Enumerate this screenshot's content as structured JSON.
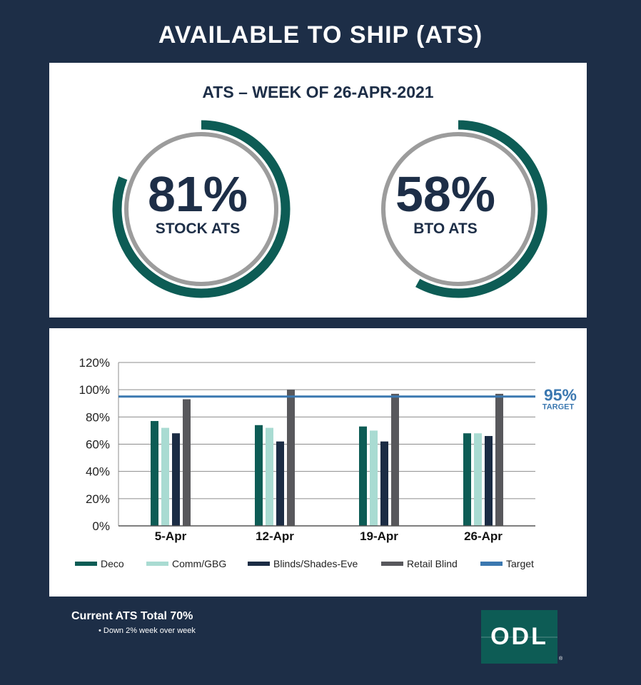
{
  "header": {
    "title": "AVAILABLE TO SHIP (ATS)"
  },
  "gauges": {
    "title": "ATS – WEEK OF 26-APR-2021",
    "stock": {
      "value": "81%",
      "label": "STOCK ATS",
      "fraction": 0.81
    },
    "bto": {
      "value": "58%",
      "label": "BTO ATS",
      "fraction": 0.58
    }
  },
  "colors": {
    "navy": "#1d2e47",
    "gauge_arc": "#0d5c55",
    "gauge_ring": "#9c9c9c"
  },
  "chart_data": {
    "type": "bar",
    "categories": [
      "5-Apr",
      "12-Apr",
      "19-Apr",
      "26-Apr"
    ],
    "series": [
      {
        "name": "Deco",
        "color": "#0d5c55",
        "values": [
          77,
          74,
          73,
          68
        ]
      },
      {
        "name": "Comm/GBG",
        "color": "#a9dbd2",
        "values": [
          72,
          72,
          70,
          68
        ]
      },
      {
        "name": "Blinds/Shades-Eve",
        "color": "#1b2c44",
        "values": [
          68,
          62,
          62,
          66
        ]
      },
      {
        "name": "Retail Blind",
        "color": "#58585c",
        "values": [
          93,
          100,
          97,
          97
        ]
      }
    ],
    "target": {
      "name": "Target",
      "value": 95,
      "color": "#3b78b0",
      "label_value": "95%",
      "label_text": "TARGET"
    },
    "ylim": [
      0,
      120
    ],
    "yticks": [
      "0%",
      "20%",
      "40%",
      "60%",
      "80%",
      "100%",
      "120%"
    ],
    "grid": true,
    "legend": "bottom"
  },
  "footer": {
    "total": "Current ATS Total 70%",
    "note": "• Down 2% week over week"
  },
  "logo": {
    "text": "ODL",
    "reg": "®"
  }
}
